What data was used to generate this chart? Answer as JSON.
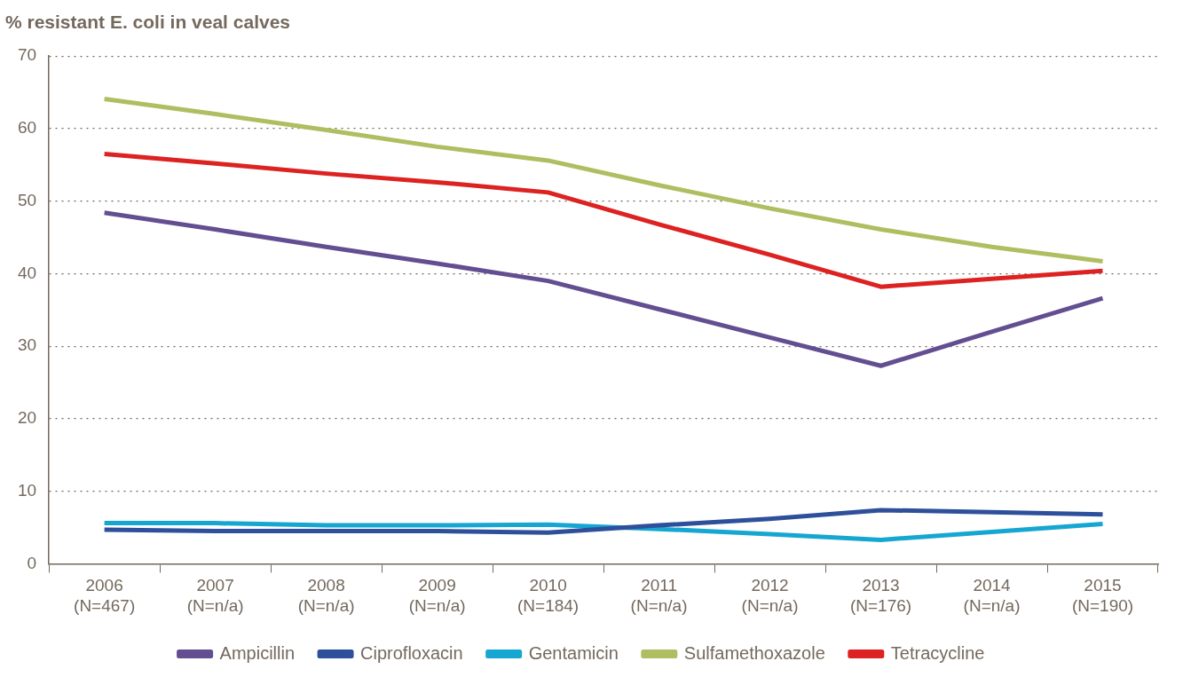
{
  "chart_data": {
    "type": "line",
    "title": "% resistant E. coli in veal calves",
    "categories": [
      "2006\n(N=467)",
      "2007\n(N=n/a)",
      "2008\n(N=n/a)",
      "2009\n(N=n/a)",
      "2010\n(N=184)",
      "2011\n(N=n/a)",
      "2012\n(N=n/a)",
      "2013\n(N=176)",
      "2014\n(N=n/a)",
      "2015\n(N=190)"
    ],
    "series": [
      {
        "name": "Ampicillin",
        "color": "#634e91",
        "values": [
          48.4,
          46.1,
          43.7,
          41.4,
          39.0,
          35.1,
          31.2,
          27.3,
          32.0,
          36.6
        ]
      },
      {
        "name": "Ciprofloxacin",
        "color": "#2e509b",
        "values": [
          4.7,
          4.5,
          4.5,
          4.5,
          4.3,
          5.3,
          6.2,
          7.4,
          7.1,
          6.8
        ]
      },
      {
        "name": "Gentamicin",
        "color": "#16a6d2",
        "values": [
          5.6,
          5.6,
          5.3,
          5.3,
          5.4,
          4.8,
          4.1,
          3.3,
          4.4,
          5.5
        ]
      },
      {
        "name": "Sulfamethoxazole",
        "color": "#afbe60",
        "values": [
          64.1,
          62.0,
          59.8,
          57.5,
          55.6,
          52.2,
          49.0,
          46.1,
          43.7,
          41.7
        ]
      },
      {
        "name": "Tetracycline",
        "color": "#dd2222",
        "values": [
          56.5,
          55.2,
          53.8,
          52.6,
          51.2,
          46.8,
          42.6,
          38.2,
          39.3,
          40.4
        ]
      }
    ],
    "ylim": [
      0,
      70
    ],
    "yticks": [
      0,
      10,
      20,
      30,
      40,
      50,
      60,
      70
    ],
    "grid": "y",
    "legend": "bottom",
    "marker": "none",
    "line_style": "solid"
  }
}
